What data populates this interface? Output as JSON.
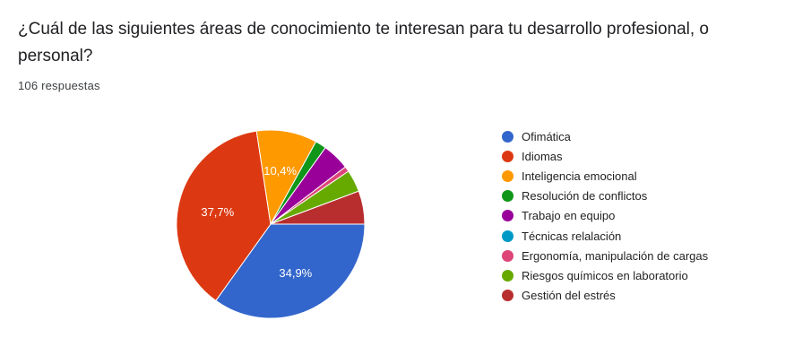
{
  "question": {
    "title": "¿Cuál de las siguientes áreas de conocimiento te interesan para tu desarrollo profesional, o personal?",
    "responses": "106 respuestas"
  },
  "chart_data": {
    "type": "pie",
    "legend_position": "right",
    "categories": [
      "Ofimática",
      "Idiomas",
      "Inteligencia emocional",
      "Resolución de conflictos",
      "Trabajo en equipo",
      "Técnicas relalación",
      "Ergonomía, manipulación de cargas",
      "Riesgos químicos en laboratorio",
      "Gestión del estrés"
    ],
    "values": [
      34.9,
      37.7,
      10.4,
      1.9,
      4.7,
      0,
      0.9,
      3.8,
      5.7
    ],
    "data_labels": [
      "34,9%",
      "37,7%",
      "10,4%",
      "",
      "",
      "",
      "",
      "",
      ""
    ],
    "colors": [
      "#3366cc",
      "#dc3912",
      "#ff9900",
      "#109618",
      "#990099",
      "#0099c6",
      "#dd4477",
      "#66aa00",
      "#b82e2e"
    ]
  }
}
